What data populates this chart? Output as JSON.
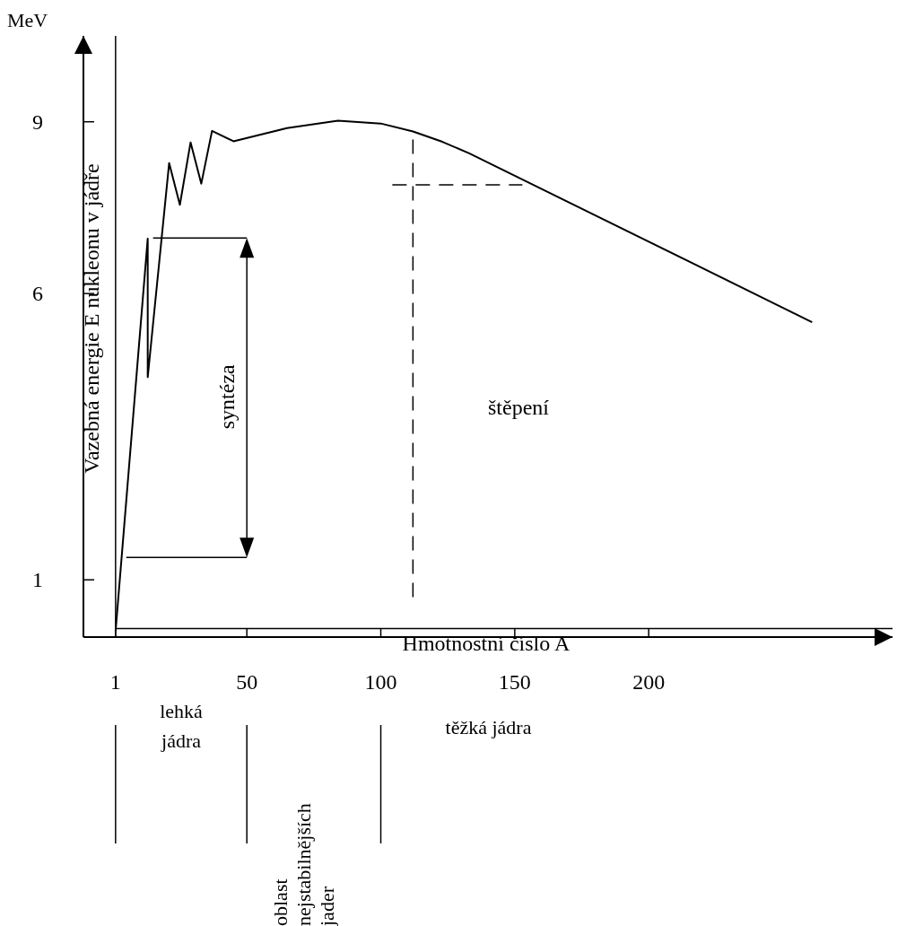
{
  "chart_data": {
    "type": "line",
    "xlabel": "Hmotnostní číslo A",
    "ylabel": "Vazebná energie E nukleonu v jádře",
    "x": [
      1,
      13,
      13,
      21,
      25,
      29,
      33,
      37,
      45,
      65,
      84,
      100,
      112,
      123,
      133,
      261
    ],
    "series": [
      {
        "color": "#000000",
        "values": [
          0.1,
          6.96,
          4.54,
          8.28,
          7.55,
          8.64,
          7.92,
          8.84,
          8.66,
          8.89,
          9.02,
          8.97,
          8.83,
          8.65,
          8.45,
          5.5
        ]
      }
    ],
    "xlim": [
      -11,
      291
    ],
    "ylim": [
      0,
      10.5
    ],
    "xticks": [
      1,
      50,
      100,
      150,
      200
    ],
    "yticks": [
      1,
      6,
      9
    ],
    "ref_lines": [
      {
        "axis": "x",
        "value": 1,
        "line_style": "solid"
      },
      {
        "axis": "y",
        "value": 0.15,
        "line_style": "solid"
      },
      {
        "axis": "x",
        "value": 112,
        "line_style": "dashed"
      },
      {
        "axis": "y",
        "value": 7.9,
        "line_style": "dashed"
      }
    ],
    "annotations": [
      "MeV",
      "syntéza",
      "štěpení",
      "lehká jádra",
      "oblast nejstabilnějších jader",
      "těžká jádra"
    ],
    "grid": false,
    "marker": "none",
    "line_style": "solid"
  }
}
